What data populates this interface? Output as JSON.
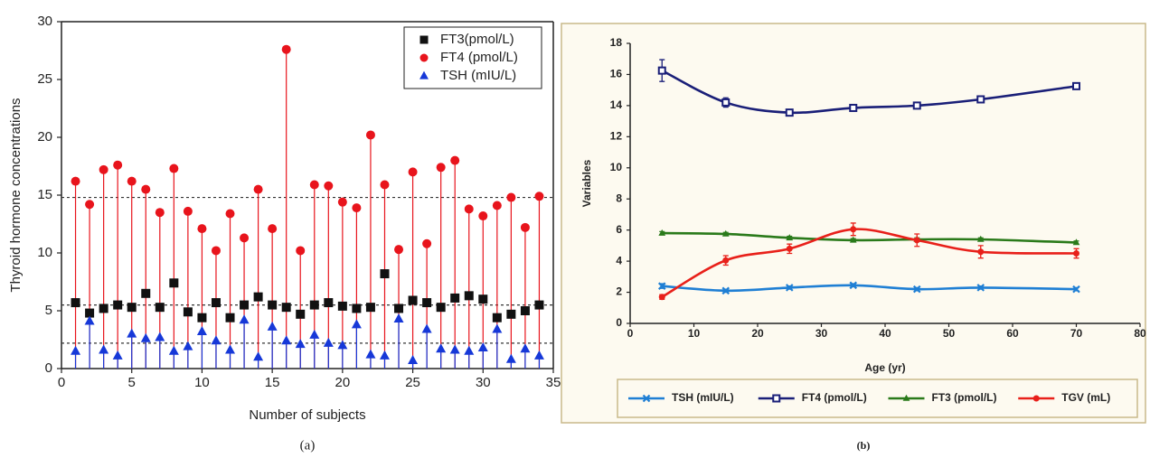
{
  "chart_data": [
    {
      "type": "scatter",
      "caption": "(a)",
      "x_label": "Number of subjects",
      "y_label": "Thyroid hormone concentrations",
      "x": [
        1,
        2,
        3,
        4,
        5,
        6,
        7,
        8,
        9,
        10,
        11,
        12,
        13,
        14,
        15,
        16,
        17,
        18,
        19,
        20,
        21,
        22,
        23,
        24,
        25,
        26,
        27,
        28,
        29,
        30,
        31,
        32,
        33,
        34
      ],
      "series": [
        {
          "name": "FT3(pmol/L)",
          "color": "#111111",
          "marker": "square",
          "stems": false,
          "values": [
            5.7,
            4.8,
            5.2,
            5.5,
            5.3,
            6.5,
            5.3,
            7.4,
            4.9,
            4.4,
            5.7,
            4.4,
            5.5,
            6.2,
            5.5,
            5.3,
            4.7,
            5.5,
            5.7,
            5.4,
            5.2,
            5.3,
            8.2,
            5.2,
            5.9,
            5.7,
            5.3,
            6.1,
            6.3,
            6.0,
            4.4,
            4.7,
            5.0,
            5.5
          ]
        },
        {
          "name": "FT4 (pmol/L)",
          "color": "#e8141c",
          "marker": "circle",
          "stems": true,
          "values": [
            16.2,
            14.2,
            17.2,
            17.6,
            16.2,
            15.5,
            13.5,
            17.3,
            13.6,
            12.1,
            10.2,
            13.4,
            11.3,
            15.5,
            12.1,
            27.6,
            10.2,
            15.9,
            15.8,
            14.4,
            13.9,
            20.2,
            15.9,
            10.3,
            17.0,
            10.8,
            17.4,
            18.0,
            13.8,
            13.2,
            14.1,
            14.8,
            12.2,
            14.9
          ]
        },
        {
          "name": "TSH (mIU/L)",
          "color": "#1638d8",
          "marker": "triangle",
          "stems": true,
          "values": [
            1.5,
            4.1,
            1.6,
            1.1,
            3.0,
            2.6,
            2.7,
            1.5,
            1.9,
            3.2,
            2.4,
            1.6,
            4.2,
            1.0,
            3.6,
            2.4,
            2.1,
            2.9,
            2.2,
            2.0,
            3.8,
            1.2,
            1.1,
            4.3,
            0.7,
            3.4,
            1.7,
            1.6,
            1.5,
            1.8,
            3.4,
            0.8,
            1.7,
            1.1
          ]
        }
      ],
      "hlines": [
        14.8,
        5.5,
        2.2
      ],
      "xlim": [
        0,
        35
      ],
      "xticks": [
        0,
        5,
        10,
        15,
        20,
        25,
        30,
        35
      ],
      "ylim": [
        0,
        30
      ],
      "yticks": [
        0,
        5,
        10,
        15,
        20,
        25,
        30
      ],
      "legend": "top-right",
      "grid": false
    },
    {
      "type": "line",
      "caption": "(b)",
      "x_label": "Age (yr)",
      "y_label": "Variables",
      "x": [
        5,
        15,
        25,
        35,
        45,
        55,
        70
      ],
      "series": [
        {
          "name": "TSH (mIU/L)",
          "color": "#1f7fd4",
          "marker": "x",
          "values": [
            2.4,
            2.1,
            2.3,
            2.45,
            2.2,
            2.3,
            2.2
          ],
          "errors": [
            0.15,
            0.1,
            0.1,
            0.1,
            0.1,
            0.1,
            0.1
          ]
        },
        {
          "name": "FT4 (pmol/L)",
          "color": "#1a1f78",
          "marker": "square",
          "values": [
            16.25,
            14.2,
            13.55,
            13.85,
            14.0,
            14.4,
            15.25
          ],
          "errors": [
            0.7,
            0.3,
            0.15,
            0.15,
            0.15,
            0.15,
            0.1
          ]
        },
        {
          "name": "FT3 (pmol/L)",
          "color": "#2a7a1a",
          "marker": "triangle",
          "values": [
            5.8,
            5.75,
            5.5,
            5.35,
            5.4,
            5.4,
            5.2
          ],
          "errors": [
            0.1,
            0.1,
            0.1,
            0.1,
            0.1,
            0.1,
            0.1
          ]
        },
        {
          "name": "TGV (mL)",
          "color": "#e8201a",
          "marker": "circle",
          "values": [
            1.7,
            4.05,
            4.8,
            6.05,
            5.35,
            4.6,
            4.5
          ],
          "errors": [
            0.15,
            0.3,
            0.3,
            0.4,
            0.4,
            0.4,
            0.3
          ]
        }
      ],
      "xlim": [
        0,
        80
      ],
      "xticks": [
        0,
        10,
        20,
        30,
        40,
        50,
        60,
        70,
        80
      ],
      "ylim": [
        0,
        18
      ],
      "yticks": [
        0,
        2,
        4,
        6,
        8,
        10,
        12,
        14,
        16,
        18
      ],
      "legend": "bottom",
      "grid": false
    }
  ]
}
